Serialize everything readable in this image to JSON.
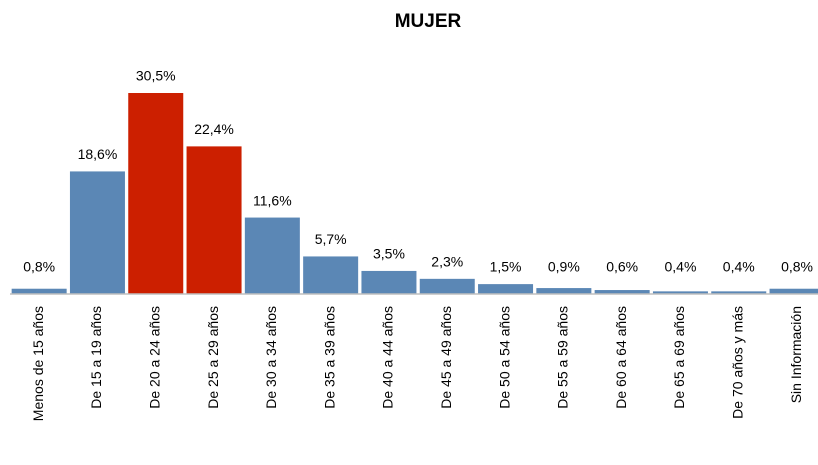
{
  "chart_data": {
    "type": "bar",
    "title": "MUJER",
    "categories": [
      "Menos de 15 años",
      "De 15 a 19 años",
      "De 20 a 24 años",
      "De 25 a 29 años",
      "De 30 a 34 años",
      "De 35 a 39 años",
      "De 40 a 44 años",
      "De 45 a 49 años",
      "De 50 a 54 años",
      "De 55 a 59 años",
      "De 60 a 64 años",
      "De 65 a 69 años",
      "De 70 años y más",
      "Sin Información"
    ],
    "values": [
      0.8,
      18.6,
      30.5,
      22.4,
      11.6,
      5.7,
      3.5,
      2.3,
      1.5,
      0.9,
      0.6,
      0.4,
      0.4,
      0.8
    ],
    "value_labels": [
      "0,8%",
      "18,6%",
      "30,5%",
      "22,4%",
      "11,6%",
      "5,7%",
      "3,5%",
      "2,3%",
      "1,5%",
      "0,9%",
      "0,6%",
      "0,4%",
      "0,4%",
      "0,8%"
    ],
    "colors": [
      "#5b87b5",
      "#5b87b5",
      "#cc1f00",
      "#cc1f00",
      "#5b87b5",
      "#5b87b5",
      "#5b87b5",
      "#5b87b5",
      "#5b87b5",
      "#5b87b5",
      "#5b87b5",
      "#5b87b5",
      "#5b87b5",
      "#5b87b5"
    ]
  }
}
